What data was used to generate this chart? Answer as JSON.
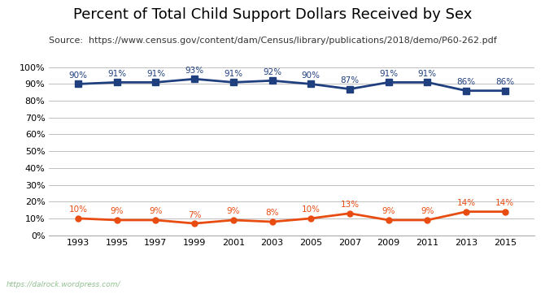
{
  "title": "Percent of Total Child Support Dollars Received by Sex",
  "source": "Source:  https://www.census.gov/content/dam/Census/library/publications/2018/demo/P60-262.pdf",
  "years": [
    1993,
    1995,
    1997,
    1999,
    2001,
    2003,
    2005,
    2007,
    2009,
    2011,
    2013,
    2015
  ],
  "mothers": [
    90,
    91,
    91,
    93,
    91,
    92,
    90,
    87,
    91,
    91,
    86,
    86
  ],
  "fathers": [
    10,
    9,
    9,
    7,
    9,
    8,
    10,
    13,
    9,
    9,
    14,
    14
  ],
  "mothers_color": "#1f3f7f",
  "fathers_color": "#e84c11",
  "source_color": "#333333",
  "bg_color": "#ffffff",
  "grid_color": "#c0c0c0",
  "title_fontsize": 13,
  "source_fontsize": 8,
  "label_fontsize": 7.5,
  "tick_fontsize": 8,
  "legend_fontsize": 9,
  "footer_bg": "#3a6644",
  "footer_text": "https://dalrock.wordpress.com/",
  "footer_text_color": "#8fbf8f",
  "ylim": [
    0,
    105
  ],
  "yticks": [
    0,
    10,
    20,
    30,
    40,
    50,
    60,
    70,
    80,
    90,
    100
  ],
  "ytick_labels": [
    "0%",
    "10%",
    "20%",
    "30%",
    "40%",
    "50%",
    "60%",
    "70%",
    "80%",
    "90%",
    "100%"
  ]
}
